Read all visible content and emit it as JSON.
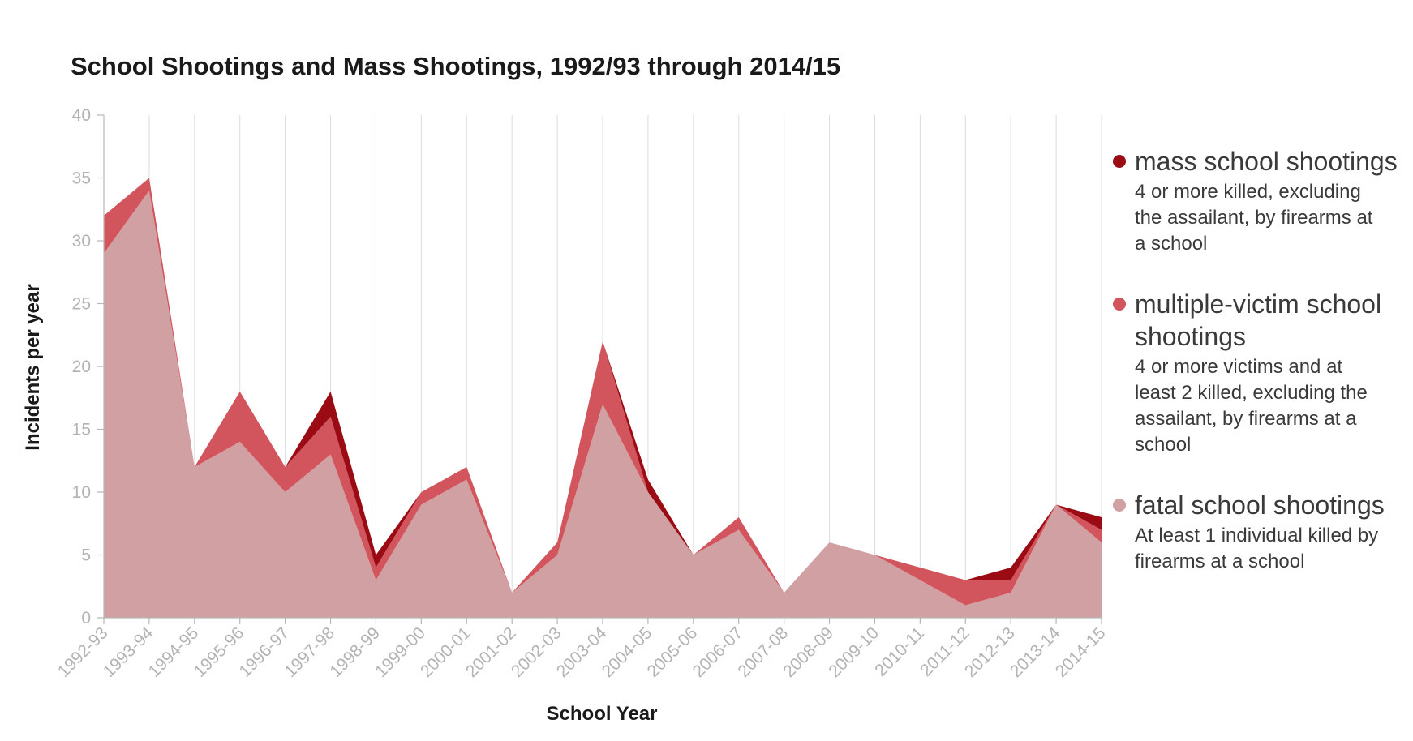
{
  "chart_data": {
    "type": "area",
    "title": "School Shootings and Mass Shootings, 1992/93 through 2014/15",
    "xlabel": "School Year",
    "ylabel": "Incidents per year",
    "ylim": [
      0,
      40
    ],
    "yticks": [
      0,
      5,
      10,
      15,
      20,
      25,
      30,
      35,
      40
    ],
    "grid": "vertical",
    "legend_position": "right",
    "categories": [
      "1992-93",
      "1993-94",
      "1994-95",
      "1995-96",
      "1996-97",
      "1997-98",
      "1998-99",
      "1999-00",
      "2000-01",
      "2001-02",
      "2002-03",
      "2003-04",
      "2004-05",
      "2005-06",
      "2006-07",
      "2007-08",
      "2008-09",
      "2009-10",
      "2010-11",
      "2011-12",
      "2012-13",
      "2013-14",
      "2014-15"
    ],
    "series": [
      {
        "name": "fatal school shootings",
        "description": "At least 1 individual killed by firearms at a school",
        "color": "#d1a0a2",
        "values": [
          29,
          34,
          12,
          14,
          10,
          13,
          3,
          9,
          11,
          2,
          5,
          17,
          10,
          5,
          7,
          2,
          6,
          5,
          3,
          1,
          2,
          9,
          6
        ]
      },
      {
        "name": "multiple-victim school shootings",
        "description": "4 or more victims and at least 2 killed, excluding the assailant, by firearms at a school",
        "color": "#d2545c",
        "values": [
          3,
          1,
          0,
          4,
          2,
          3,
          1,
          1,
          1,
          0,
          1,
          5,
          0,
          0,
          1,
          0,
          0,
          0,
          1,
          2,
          1,
          0,
          1
        ]
      },
      {
        "name": "mass school shootings",
        "description": "4 or more killed, excluding the assailant, by firearms at a school",
        "color": "#9b0b14",
        "values": [
          0,
          0,
          0,
          0,
          0,
          2,
          1,
          0,
          0,
          0,
          0,
          0,
          1,
          0,
          0,
          0,
          0,
          0,
          0,
          0,
          1,
          0,
          1
        ]
      }
    ]
  },
  "legend": {
    "items": [
      {
        "name_lines": [
          "mass school shootings"
        ],
        "desc_lines": [
          "4 or more killed, excluding",
          "the assailant, by firearms at",
          "a school"
        ],
        "color": "#9b0b14"
      },
      {
        "name_lines": [
          "multiple-victim school",
          "shootings"
        ],
        "desc_lines": [
          "4 or more victims and at",
          "least 2 killed, excluding the",
          "assailant, by firearms at a",
          "school"
        ],
        "color": "#d2545c"
      },
      {
        "name_lines": [
          "fatal school shootings"
        ],
        "desc_lines": [
          "At least 1 individual killed by",
          "firearms at a school"
        ],
        "color": "#d1a0a2"
      }
    ]
  }
}
